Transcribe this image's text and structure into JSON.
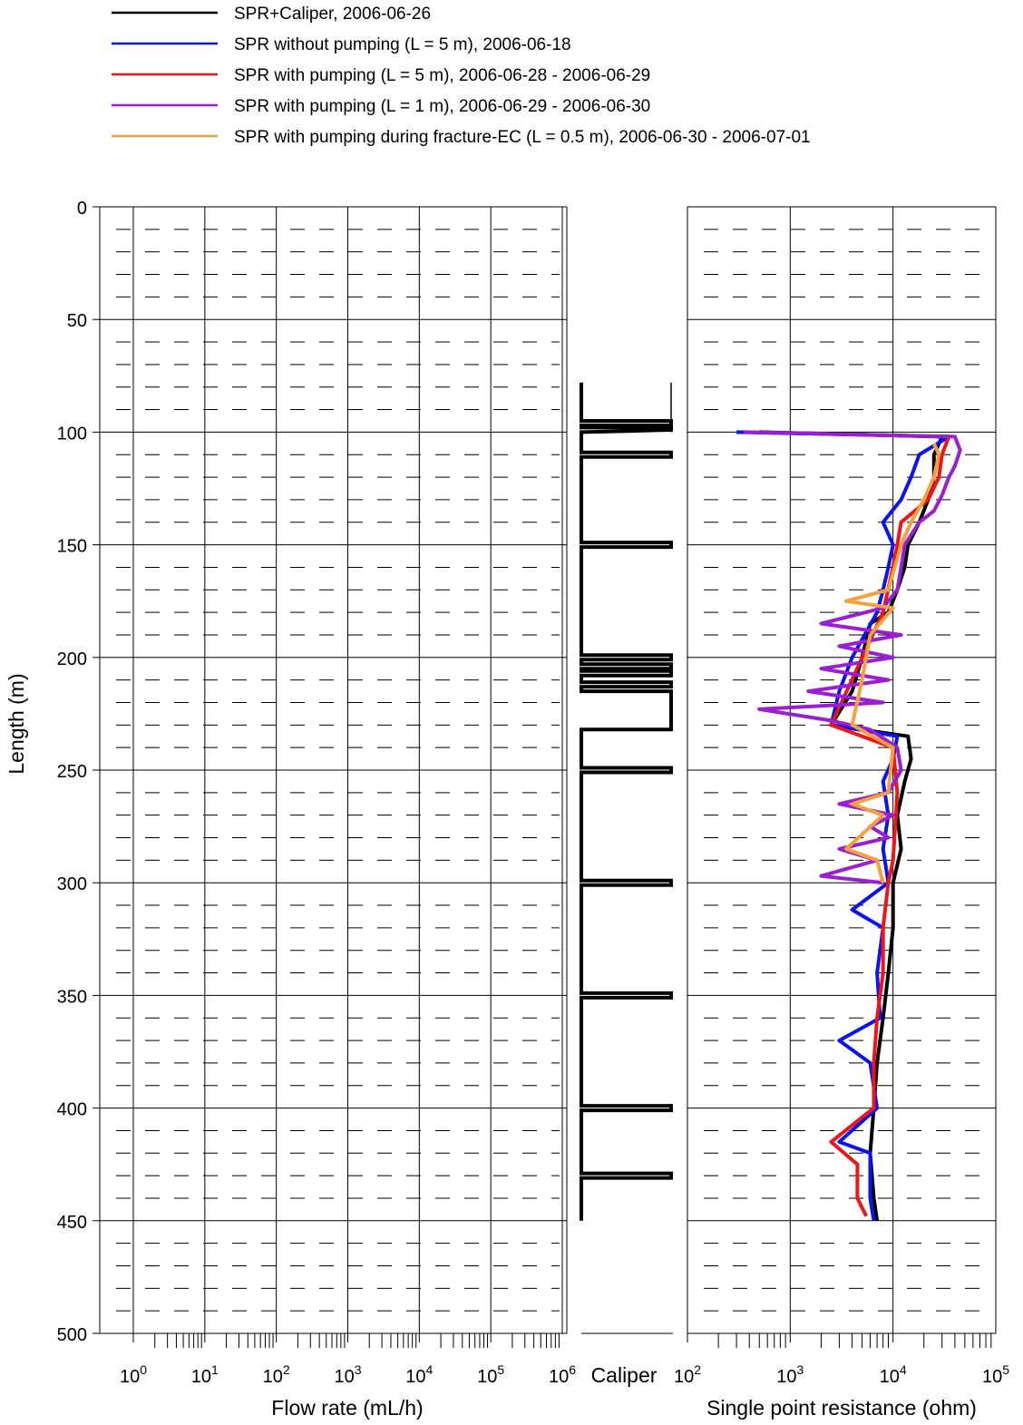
{
  "chart_data": {
    "type": "line",
    "ylabel": "Length (m)",
    "ylim": [
      0,
      500
    ],
    "y_ticks": [
      "0",
      "50",
      "100",
      "150",
      "200",
      "250",
      "300",
      "350",
      "400",
      "450",
      "500"
    ],
    "legend_placement": "top",
    "legend": [
      {
        "label": "SPR+Caliper, 2006-06-26",
        "color": "#000000"
      },
      {
        "label": "SPR without pumping (L = 5 m), 2006-06-18",
        "color": "#0a14f0"
      },
      {
        "label": "SPR with pumping (L = 5 m), 2006-06-28 - 2006-06-29",
        "color": "#f01414"
      },
      {
        "label": "SPR with pumping (L = 1 m), 2006-06-29 - 2006-06-30",
        "color": "#9a1ed2"
      },
      {
        "label": "SPR with pumping during fracture-EC (L = 0.5 m), 2006-06-30 - 2006-07-01",
        "color": "#f5a03c"
      }
    ],
    "panels": [
      {
        "id": "flow",
        "xlabel": "Flow rate (mL/h)",
        "xscale": "log",
        "xlim": [
          1,
          1000000
        ],
        "tick_base": "10",
        "tick_exponents": [
          "0",
          "1",
          "2",
          "3",
          "4",
          "5",
          "6"
        ]
      },
      {
        "id": "caliper",
        "xlabel": "Caliper",
        "caliper_profile": [
          [
            78,
            0
          ],
          [
            95,
            0
          ],
          [
            95,
            1
          ],
          [
            97,
            1
          ],
          [
            97,
            0
          ],
          [
            98,
            0
          ],
          [
            98,
            1
          ],
          [
            99,
            1
          ],
          [
            99.5,
            0.5
          ],
          [
            100,
            0
          ],
          [
            109,
            0
          ],
          [
            109,
            1
          ],
          [
            111,
            1
          ],
          [
            111,
            0
          ],
          [
            149,
            0
          ],
          [
            149,
            1
          ],
          [
            151,
            1
          ],
          [
            151,
            0
          ],
          [
            199,
            0
          ],
          [
            199,
            1
          ],
          [
            201,
            1
          ],
          [
            201,
            0
          ],
          [
            203,
            0
          ],
          [
            203,
            1
          ],
          [
            205,
            1
          ],
          [
            205,
            0
          ],
          [
            206,
            0
          ],
          [
            206,
            1
          ],
          [
            208,
            1
          ],
          [
            208,
            0
          ],
          [
            211,
            0
          ],
          [
            211,
            1
          ],
          [
            213,
            1
          ],
          [
            213,
            0
          ],
          [
            215,
            0
          ],
          [
            215,
            1
          ],
          [
            232,
            1
          ],
          [
            232,
            0
          ],
          [
            249,
            0
          ],
          [
            249,
            1
          ],
          [
            251,
            1
          ],
          [
            251,
            0
          ],
          [
            299,
            0
          ],
          [
            299,
            1
          ],
          [
            301,
            1
          ],
          [
            301,
            0
          ],
          [
            349,
            0
          ],
          [
            349,
            1
          ],
          [
            351,
            1
          ],
          [
            351,
            0
          ],
          [
            399,
            0
          ],
          [
            399,
            1
          ],
          [
            401,
            1
          ],
          [
            401,
            0
          ],
          [
            429,
            0
          ],
          [
            429,
            1
          ],
          [
            431,
            1
          ],
          [
            431,
            0
          ],
          [
            450,
            0
          ]
        ]
      },
      {
        "id": "spr",
        "xlabel": "Single point resistance (ohm)",
        "xscale": "log",
        "xlim": [
          100,
          100000
        ],
        "tick_base": "10",
        "tick_exponents": [
          "2",
          "3",
          "4",
          "5"
        ],
        "series": [
          {
            "color": "#000000",
            "points": [
              [
                100,
                500
              ],
              [
                102,
                30000
              ],
              [
                110,
                25000
              ],
              [
                120,
                25000
              ],
              [
                130,
                22000
              ],
              [
                140,
                18000
              ],
              [
                150,
                14000
              ],
              [
                160,
                13000
              ],
              [
                170,
                11000
              ],
              [
                180,
                9000
              ],
              [
                185,
                6000
              ],
              [
                200,
                5000
              ],
              [
                215,
                4000
              ],
              [
                230,
                2500
              ],
              [
                235,
                14000
              ],
              [
                245,
                15000
              ],
              [
                255,
                13000
              ],
              [
                270,
                11000
              ],
              [
                285,
                12000
              ],
              [
                300,
                10000
              ],
              [
                320,
                10000
              ],
              [
                340,
                9000
              ],
              [
                360,
                8000
              ],
              [
                380,
                7000
              ],
              [
                400,
                6500
              ],
              [
                420,
                6000
              ],
              [
                440,
                6500
              ],
              [
                450,
                7000
              ]
            ]
          },
          {
            "color": "#0a14f0",
            "points": [
              [
                100,
                300
              ],
              [
                102,
                35000
              ],
              [
                110,
                18000
              ],
              [
                120,
                15000
              ],
              [
                130,
                12000
              ],
              [
                140,
                8000
              ],
              [
                150,
                10000
              ],
              [
                160,
                9000
              ],
              [
                170,
                8000
              ],
              [
                180,
                7000
              ],
              [
                200,
                4000
              ],
              [
                215,
                3000
              ],
              [
                230,
                2500
              ],
              [
                235,
                11000
              ],
              [
                245,
                10000
              ],
              [
                255,
                8000
              ],
              [
                270,
                9000
              ],
              [
                285,
                8000
              ],
              [
                300,
                9000
              ],
              [
                312,
                4000
              ],
              [
                320,
                8000
              ],
              [
                340,
                7000
              ],
              [
                360,
                7500
              ],
              [
                370,
                3000
              ],
              [
                380,
                6000
              ],
              [
                400,
                7000
              ],
              [
                415,
                3000
              ],
              [
                420,
                6000
              ],
              [
                440,
                6000
              ],
              [
                450,
                6500
              ]
            ]
          },
          {
            "color": "#f01414",
            "points": [
              [
                102,
                35000
              ],
              [
                110,
                30000
              ],
              [
                120,
                28000
              ],
              [
                130,
                22000
              ],
              [
                140,
                12000
              ],
              [
                150,
                11000
              ],
              [
                160,
                10000
              ],
              [
                180,
                8000
              ],
              [
                230,
                2500
              ],
              [
                240,
                10000
              ],
              [
                260,
                11000
              ],
              [
                290,
                10000
              ],
              [
                300,
                9000
              ],
              [
                320,
                8000
              ],
              [
                340,
                8000
              ],
              [
                360,
                7000
              ],
              [
                380,
                6500
              ],
              [
                400,
                6500
              ],
              [
                415,
                2500
              ],
              [
                425,
                4500
              ],
              [
                440,
                4500
              ],
              [
                448,
                5500
              ]
            ]
          },
          {
            "color": "#9a1ed2",
            "points": [
              [
                100,
                350
              ],
              [
                102,
                40000
              ],
              [
                108,
                45000
              ],
              [
                115,
                40000
              ],
              [
                120,
                35000
              ],
              [
                128,
                30000
              ],
              [
                135,
                25000
              ],
              [
                140,
                18000
              ],
              [
                150,
                13000
              ],
              [
                160,
                12000
              ],
              [
                170,
                11000
              ],
              [
                178,
                8000
              ],
              [
                185,
                2000
              ],
              [
                190,
                12000
              ],
              [
                195,
                3000
              ],
              [
                200,
                10000
              ],
              [
                205,
                2000
              ],
              [
                210,
                9000
              ],
              [
                215,
                1500
              ],
              [
                220,
                8000
              ],
              [
                223,
                500
              ],
              [
                228,
                2500
              ],
              [
                232,
                6000
              ],
              [
                240,
                11000
              ],
              [
                250,
                12000
              ],
              [
                260,
                9000
              ],
              [
                265,
                3000
              ],
              [
                270,
                10000
              ],
              [
                275,
                6000
              ],
              [
                280,
                9000
              ],
              [
                285,
                3000
              ],
              [
                290,
                7000
              ],
              [
                297,
                2000
              ],
              [
                300,
                8000
              ]
            ]
          },
          {
            "color": "#f5a03c",
            "points": [
              [
                105,
                25000
              ],
              [
                110,
                28000
              ],
              [
                120,
                25000
              ],
              [
                130,
                20000
              ],
              [
                140,
                15000
              ],
              [
                150,
                12000
              ],
              [
                170,
                9000
              ],
              [
                175,
                3500
              ],
              [
                178,
                10000
              ],
              [
                190,
                6000
              ],
              [
                210,
                5000
              ],
              [
                230,
                4000
              ],
              [
                240,
                10000
              ],
              [
                260,
                9000
              ],
              [
                265,
                4000
              ],
              [
                270,
                8000
              ],
              [
                285,
                3500
              ],
              [
                290,
                7000
              ],
              [
                300,
                8000
              ]
            ]
          }
        ]
      }
    ]
  }
}
